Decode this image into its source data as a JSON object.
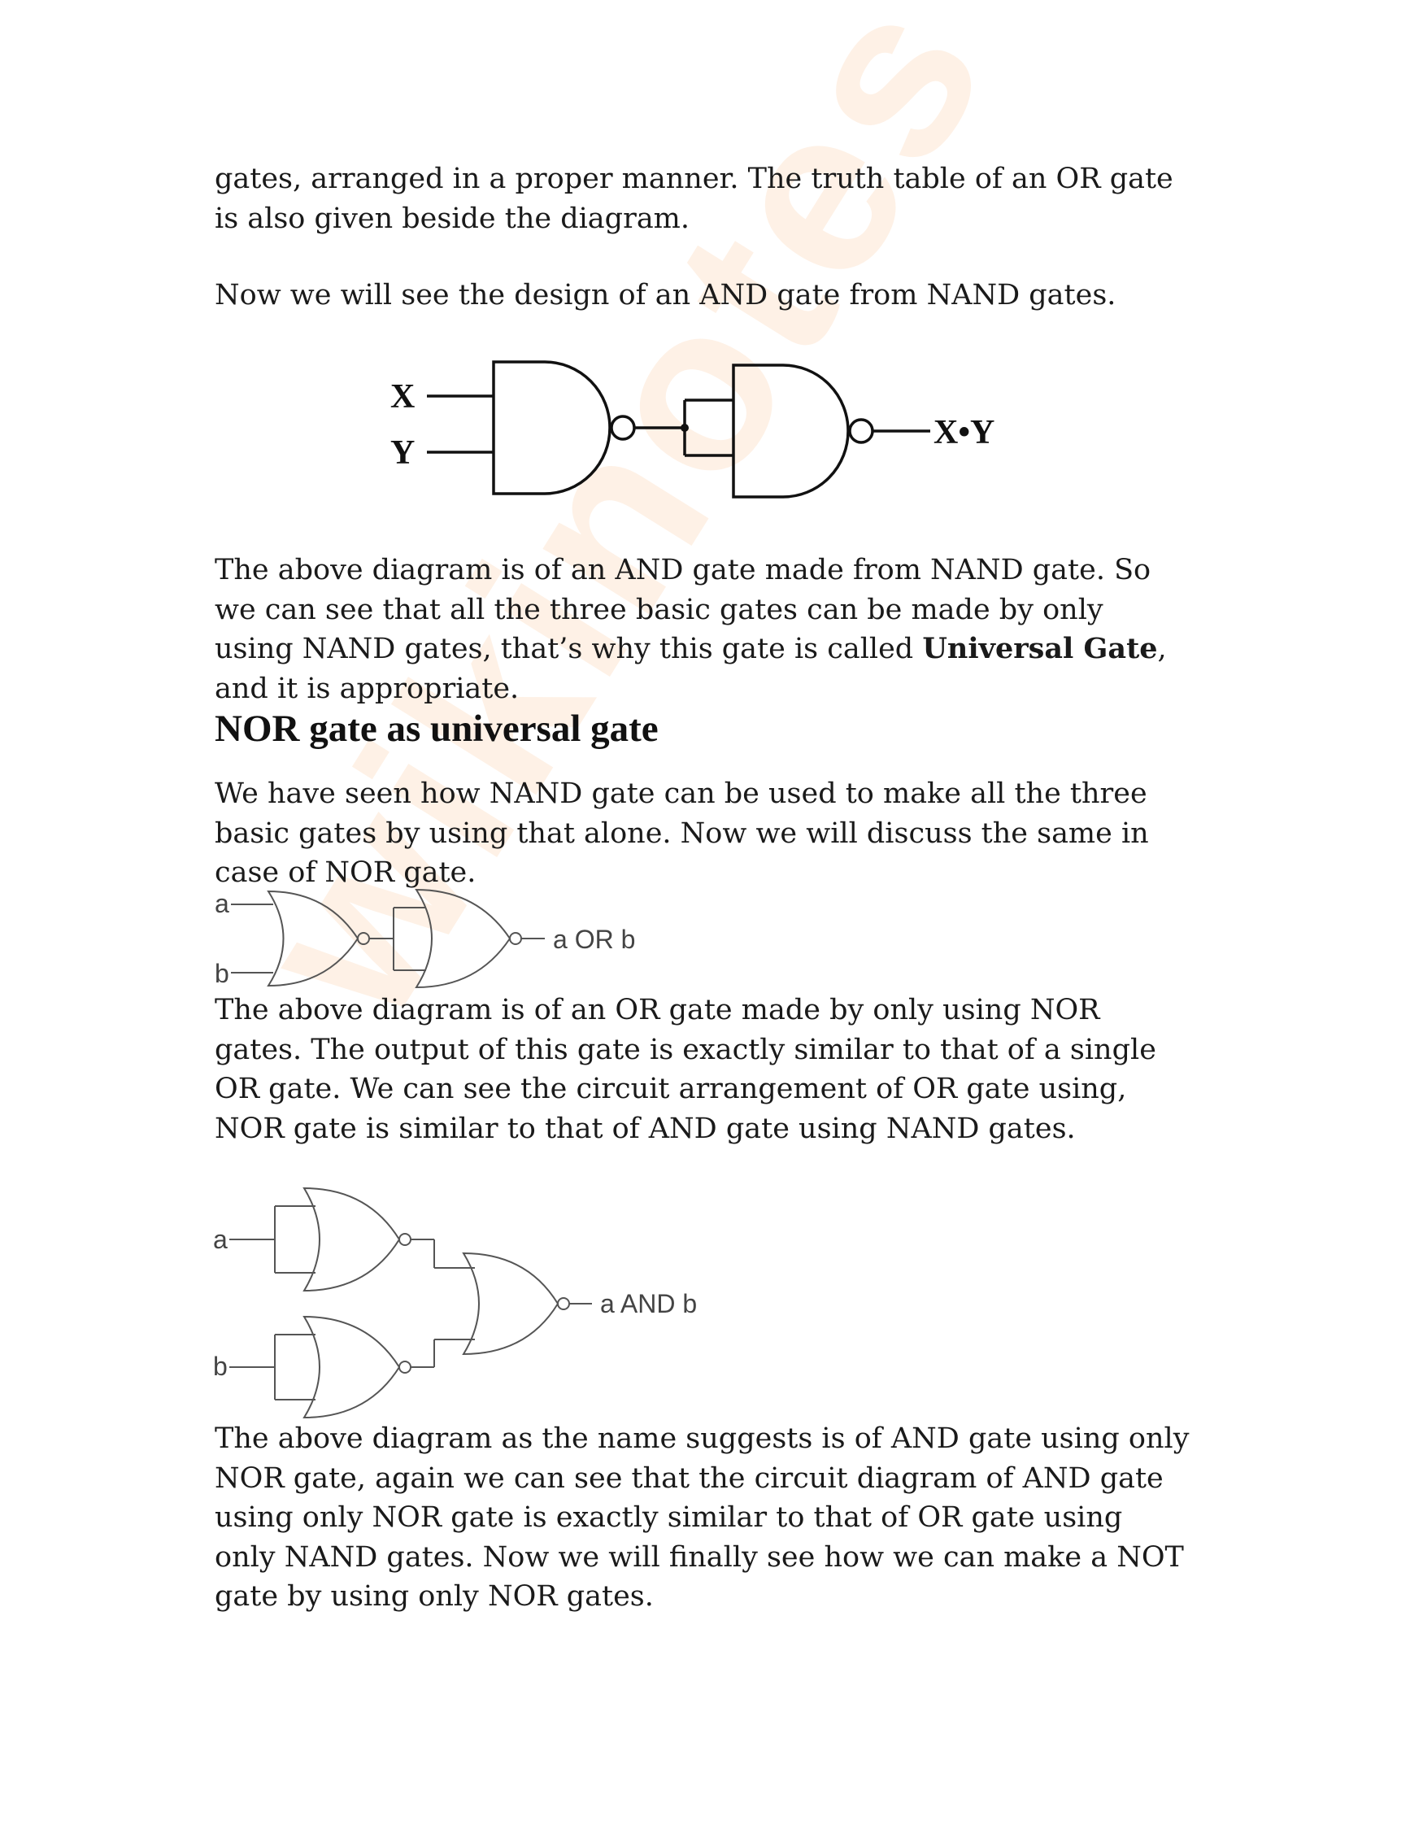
{
  "paragraphs": {
    "p1": "gates, arranged in a proper manner. The truth table of an OR gate is also given beside the diagram.",
    "p2": "Now we will see the design of an AND gate from NAND gates.",
    "p3_before": "The above diagram is of an AND gate made from NAND gate. So we can see that all the three basic gates can be made by only using NAND gates, that’s why this gate is called ",
    "p3_bold": "Universal Gate",
    "p3_after": ", and it is appropriate.",
    "p4": "We have seen how NAND gate can be used to make all the three basic gates by using that alone. Now we will discuss the same in case of NOR gate.",
    "p5": "The above diagram is of an OR gate made by only using NOR gates. The output of this gate is exactly similar to that of a single OR gate. We can see the circuit arrangement of OR gate using, NOR gate is similar to that of AND gate using NAND gates.",
    "p6": "The above diagram as the name suggests is of AND gate using only NOR gate, again we can see that the circuit diagram of AND gate using only NOR gate is exactly similar to that of OR gate using only NAND gates. Now we will finally see how we can make a NOT gate by using only NOR gates."
  },
  "heading": "NOR gate as universal gate",
  "diagram_nand_and": {
    "input_x": "X",
    "input_y": "Y",
    "output": "X•Y"
  },
  "diagram_nor_or": {
    "input_a": "a",
    "input_b": "b",
    "output": "a OR b"
  },
  "diagram_nor_and": {
    "input_a": "a",
    "input_b": "b",
    "output": "a AND b"
  },
  "watermark": "wikinotes",
  "colors": {
    "text": "#1a1a1a",
    "watermark": "#f4963c",
    "gate_stroke_dark": "#111111",
    "gate_stroke_light": "#555555"
  }
}
